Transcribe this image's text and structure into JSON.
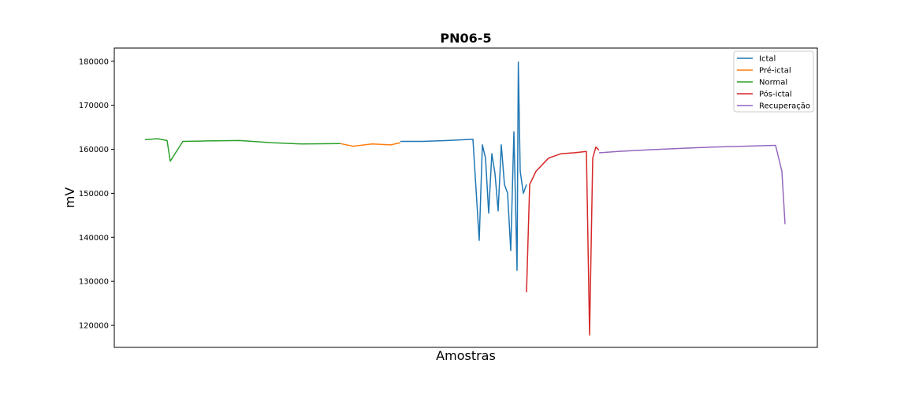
{
  "chart_data": {
    "type": "line",
    "title": "PN06-5",
    "xlabel": "Amostras",
    "ylabel": "mV",
    "ylim": [
      115000,
      183000
    ],
    "yticks": [
      120000,
      130000,
      140000,
      150000,
      160000,
      170000,
      180000
    ],
    "ytick_labels": [
      "120000",
      "130000",
      "140000",
      "150000",
      "160000",
      "170000",
      "180000"
    ],
    "x_tick_labels_shown": false,
    "grid": false,
    "legend_position": "top-right",
    "series": [
      {
        "name": "Ictal",
        "color": "#1f77b4",
        "x": [
          0.405,
          0.44,
          0.48,
          0.52,
          0.53,
          0.535,
          0.54,
          0.545,
          0.55,
          0.555,
          0.56,
          0.565,
          0.57,
          0.575,
          0.58,
          0.585,
          0.59,
          0.592,
          0.595,
          0.6,
          0.605
        ],
        "y": [
          161800,
          161800,
          162000,
          162300,
          139300,
          161000,
          158000,
          145500,
          159000,
          154500,
          146000,
          161000,
          152000,
          150000,
          137000,
          164000,
          132500,
          179800,
          155000,
          150000,
          152000
        ]
      },
      {
        "name": "Pré-ictal",
        "color": "#ff7f0e",
        "x": [
          0.31,
          0.33,
          0.36,
          0.39,
          0.405
        ],
        "y": [
          161300,
          160700,
          161200,
          161000,
          161500
        ]
      },
      {
        "name": "Normal",
        "color": "#2ca02c",
        "x": [
          0.0,
          0.02,
          0.035,
          0.04,
          0.06,
          0.1,
          0.15,
          0.2,
          0.25,
          0.31
        ],
        "y": [
          162200,
          162400,
          162000,
          157300,
          161800,
          161900,
          162000,
          161500,
          161200,
          161300
        ]
      },
      {
        "name": "Pós-ictal",
        "color": "#d62728",
        "x": [
          0.605,
          0.61,
          0.62,
          0.64,
          0.66,
          0.68,
          0.7,
          0.705,
          0.71,
          0.715,
          0.72
        ],
        "y": [
          127500,
          152000,
          155000,
          158000,
          159000,
          159200,
          159500,
          117800,
          158000,
          160500,
          159800
        ]
      },
      {
        "name": "Recuperação",
        "color": "#9467bd",
        "x": [
          0.72,
          0.75,
          0.8,
          0.85,
          0.9,
          0.95,
          1.0,
          1.01,
          1.015
        ],
        "y": [
          159200,
          159500,
          159900,
          160200,
          160500,
          160700,
          160900,
          155000,
          143000
        ]
      }
    ]
  }
}
